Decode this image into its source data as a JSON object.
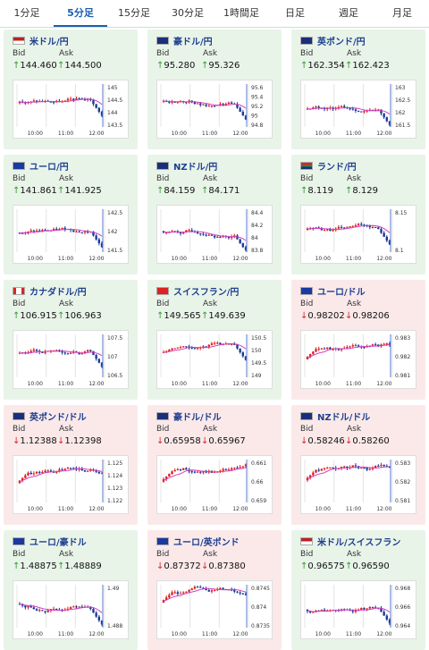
{
  "tabs": [
    {
      "label": "1分足",
      "active": false
    },
    {
      "label": "5分足",
      "active": true
    },
    {
      "label": "15分足",
      "active": false
    },
    {
      "label": "30分足",
      "active": false
    },
    {
      "label": "1時間足",
      "active": false
    },
    {
      "label": "日足",
      "active": false
    },
    {
      "label": "週足",
      "active": false
    },
    {
      "label": "月足",
      "active": false
    }
  ],
  "colors": {
    "up_bg": "#e9f4e9",
    "down_bg": "#fbe9ea",
    "candle_up": "#e02020",
    "candle_down": "#1a3a9a",
    "ma": "#d040c0",
    "accent": "#1a5fb4"
  },
  "pairs": [
    {
      "name": "米ドル/円",
      "dir": "up",
      "bid": "144.460",
      "ask": "144.500",
      "flag": "us-flag",
      "xticks": [
        "10:00",
        "11:00",
        "12:00"
      ],
      "yticks": [
        "145",
        "144.5",
        "144",
        "143.5"
      ]
    },
    {
      "name": "豪ドル/円",
      "dir": "up",
      "bid": "95.280",
      "ask": "95.326",
      "flag": "au-flag",
      "xticks": [
        "10:00",
        "11:00",
        "12:00"
      ],
      "yticks": [
        "95.6",
        "95.4",
        "95.2",
        "95",
        "94.8"
      ]
    },
    {
      "name": "英ポンド/円",
      "dir": "up",
      "bid": "162.354",
      "ask": "162.423",
      "flag": "gb-flag",
      "xticks": [
        "10:00",
        "11:00",
        "12:00"
      ],
      "yticks": [
        "163",
        "162.5",
        "162",
        "161.5"
      ]
    },
    {
      "name": "ユーロ/円",
      "dir": "up",
      "bid": "141.861",
      "ask": "141.925",
      "flag": "eu-flag",
      "xticks": [
        "10:00",
        "11:00",
        "12:00"
      ],
      "yticks": [
        "142.5",
        "142",
        "141.5"
      ]
    },
    {
      "name": "NZドル/円",
      "dir": "up",
      "bid": "84.159",
      "ask": "84.171",
      "flag": "nz-flag",
      "xticks": [
        "10:00",
        "11:00",
        "12:00"
      ],
      "yticks": [
        "84.4",
        "84.2",
        "84",
        "83.8"
      ]
    },
    {
      "name": "ランド/円",
      "dir": "up",
      "bid": "8.119",
      "ask": "8.129",
      "flag": "za-flag",
      "xticks": [
        "10:00",
        "11:00",
        "12:00"
      ],
      "yticks": [
        "8.15",
        "8.1"
      ]
    },
    {
      "name": "カナダドル/円",
      "dir": "up",
      "bid": "106.915",
      "ask": "106.963",
      "flag": "ca-flag",
      "xticks": [
        "10:00",
        "11:00",
        "12:00"
      ],
      "yticks": [
        "107.5",
        "107",
        "106.5"
      ]
    },
    {
      "name": "スイスフラン/円",
      "dir": "up",
      "bid": "149.565",
      "ask": "149.639",
      "flag": "ch-flag",
      "xticks": [
        "10:00",
        "11:00",
        "12:00"
      ],
      "yticks": [
        "150.5",
        "150",
        "149.5",
        "149"
      ]
    },
    {
      "name": "ユーロ/ドル",
      "dir": "down",
      "bid": "0.98202",
      "ask": "0.98206",
      "flag": "eu-flag",
      "xticks": [
        "10:00",
        "11:00",
        "12:00"
      ],
      "yticks": [
        "0.983",
        "0.982",
        "0.981"
      ]
    },
    {
      "name": "英ポンド/ドル",
      "dir": "down",
      "bid": "1.12388",
      "ask": "1.12398",
      "flag": "gb-flag",
      "xticks": [
        "10:00",
        "11:00",
        "12:00"
      ],
      "yticks": [
        "1.125",
        "1.124",
        "1.123",
        "1.122"
      ]
    },
    {
      "name": "豪ドル/ドル",
      "dir": "down",
      "bid": "0.65958",
      "ask": "0.65967",
      "flag": "au-flag",
      "xticks": [
        "10:00",
        "11:00",
        "12:00"
      ],
      "yticks": [
        "0.661",
        "0.66",
        "0.659"
      ]
    },
    {
      "name": "NZドル/ドル",
      "dir": "down",
      "bid": "0.58246",
      "ask": "0.58260",
      "flag": "nz-flag",
      "xticks": [
        "10:00",
        "11:00",
        "12:00"
      ],
      "yticks": [
        "0.583",
        "0.582",
        "0.581"
      ]
    },
    {
      "name": "ユーロ/豪ドル",
      "dir": "up",
      "bid": "1.48875",
      "ask": "1.48889",
      "flag": "eu-flag",
      "xticks": [
        "10:00",
        "11:00",
        "12:00"
      ],
      "yticks": [
        "1.49",
        "1.488"
      ]
    },
    {
      "name": "ユーロ/英ポンド",
      "dir": "down",
      "bid": "0.87372",
      "ask": "0.87380",
      "flag": "eu-flag",
      "xticks": [
        "10:00",
        "11:00",
        "12:00"
      ],
      "yticks": [
        "0.8745",
        "0.874",
        "0.8735"
      ]
    },
    {
      "name": "米ドル/スイスフラン",
      "dir": "up",
      "bid": "0.96575",
      "ask": "0.96590",
      "flag": "us-flag",
      "xticks": [
        "10:00",
        "11:00",
        "12:00"
      ],
      "yticks": [
        "0.968",
        "0.966",
        "0.964"
      ]
    }
  ],
  "labels": {
    "bid": "Bid",
    "ask": "Ask",
    "up_arrow": "↑",
    "down_arrow": "↓"
  }
}
